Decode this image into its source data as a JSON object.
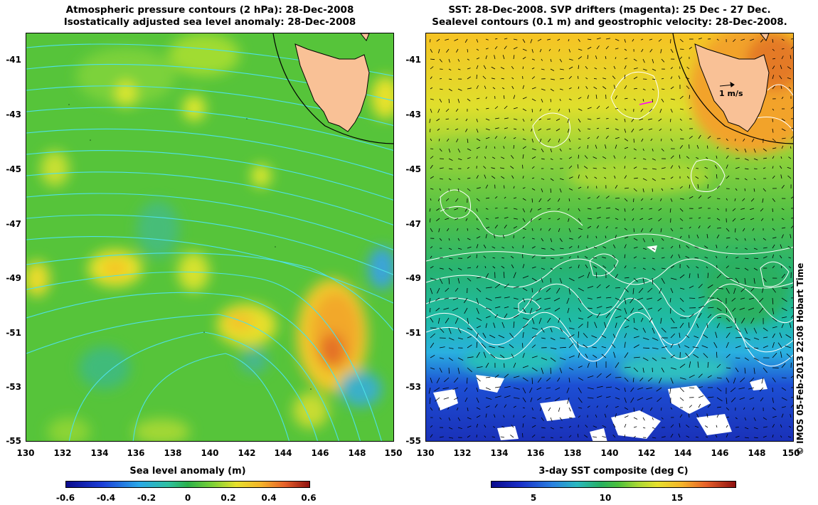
{
  "left_panel": {
    "title_line1": "Atmospheric pressure contours (2 hPa): 28-Dec-2008",
    "title_line2": "Isostatically adjusted sea level anomaly: 28-Dec-2008",
    "colorbar_title": "Sea level anomaly (m)",
    "colorbar_ticks": [
      "-0.6",
      "-0.4",
      "-0.2",
      "0",
      "0.2",
      "0.4",
      "0.6"
    ]
  },
  "right_panel": {
    "title_line1": "SST: 28-Dec-2008. SVP drifters (magenta): 25 Dec - 27 Dec.",
    "title_line2": "Sealevel contours (0.1 m) and geostrophic velocity: 28-Dec-2008.",
    "colorbar_title": "3-day SST composite (deg C)",
    "colorbar_ticks": [
      "5",
      "10",
      "15"
    ],
    "velocity_scale_label": "1 m/s"
  },
  "y_axis_labels": [
    "-41",
    "-43",
    "-45",
    "-47",
    "-49",
    "-51",
    "-53",
    "-55"
  ],
  "x_axis_labels": [
    "130",
    "132",
    "134",
    "136",
    "138",
    "140",
    "142",
    "144",
    "146",
    "148",
    "150"
  ],
  "credit": "© IMOS 05-Feb-2013 22:08 Hobart Time",
  "colors": {
    "land": "#f9c196",
    "ssh_contour": "#4fe0e6",
    "sst_contour": "#ffffff",
    "drifter": "#ff00ff"
  }
}
